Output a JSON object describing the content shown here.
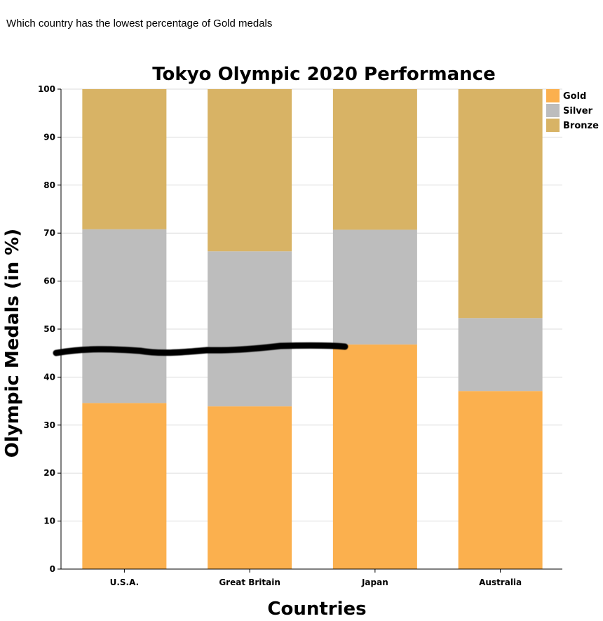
{
  "question": "Which country has the lowest percentage of Gold medals",
  "chart_data": {
    "type": "bar",
    "stacked": true,
    "title": "Tokyo Olympic 2020 Performance",
    "xlabel": "Countries",
    "ylabel": "Olympic Medals (in %)",
    "ylim": [
      0,
      100
    ],
    "yticks": [
      0,
      10,
      20,
      30,
      40,
      50,
      60,
      70,
      80,
      90,
      100
    ],
    "categories": [
      "U.S.A.",
      "Great Britain",
      "Japan",
      "Australia"
    ],
    "series": [
      {
        "name": "Gold",
        "color": "#fbb04e",
        "values": [
          34.6,
          33.9,
          46.8,
          37.1
        ]
      },
      {
        "name": "Silver",
        "color": "#bdbdbd",
        "values": [
          36.2,
          32.3,
          23.9,
          15.2
        ]
      },
      {
        "name": "Bronze",
        "color": "#d8b365",
        "values": [
          29.2,
          33.8,
          29.3,
          47.7
        ]
      }
    ],
    "grid": true,
    "legend_position": "top-right",
    "annotation": "hand-drawn black scribble line across the chart near 45%"
  }
}
